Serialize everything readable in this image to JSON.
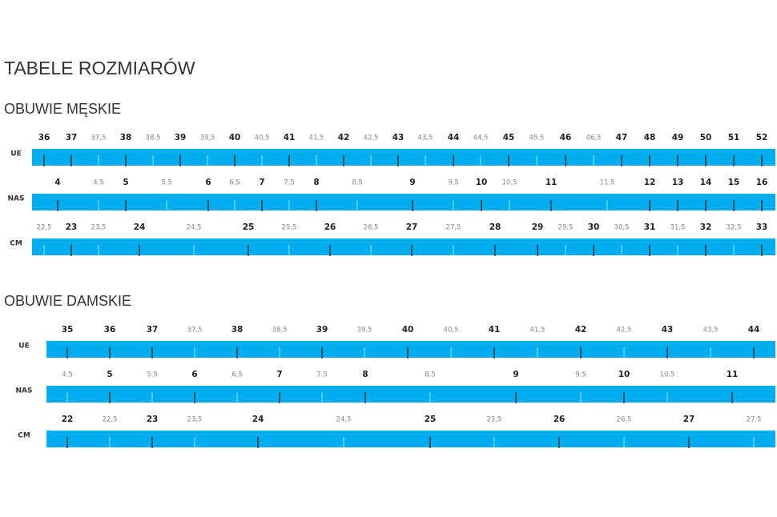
{
  "title": "TABELE ROZMIARÓW",
  "sections": [
    {
      "title": "OBUWIE MĘSKIE",
      "rows": [
        {
          "label": "UE",
          "ticks": [
            "36",
            "37",
            "37,5",
            "38",
            "38,5",
            "39",
            "39,5",
            "40",
            "40,5",
            "41",
            "41,5",
            "42",
            "42,5",
            "43",
            "43,5",
            "44",
            "44,5",
            "45",
            "45.5",
            "46",
            "46,5",
            "47",
            "48",
            "49",
            "50",
            "51",
            "52"
          ]
        },
        {
          "label": "NAS",
          "ticks": [
            "4",
            "4.5",
            "5",
            "5.5",
            "6",
            "6.5",
            "7",
            "7.5",
            "8",
            "8.5",
            "9",
            "9.5",
            "10",
            "10.5",
            "11",
            "11.5",
            "12",
            "13",
            "14",
            "15",
            "16"
          ]
        },
        {
          "label": "CM",
          "ticks": [
            "22,5",
            "23",
            "23,5",
            "24",
            "24,5",
            "25",
            "25,5",
            "26",
            "26,5",
            "27",
            "27,5",
            "28",
            "29",
            "29,5",
            "30",
            "30,5",
            "31",
            "31,5",
            "32",
            "32,5",
            "33"
          ]
        }
      ]
    },
    {
      "title": "OBUWIE DAMSKIE",
      "rows": [
        {
          "label": "UE",
          "ticks": [
            "35",
            "36",
            "37",
            "37,5",
            "38",
            "38,5",
            "39",
            "39,5",
            "40",
            "40,5",
            "41",
            "41,5",
            "42",
            "42,5",
            "43",
            "43,5",
            "44"
          ]
        },
        {
          "label": "NAS",
          "ticks": [
            "4.5",
            "5",
            "5.5",
            "6",
            "6.5",
            "7",
            "7.5",
            "8",
            "8.5",
            "9",
            "9.5",
            "10",
            "10.5",
            "11"
          ]
        },
        {
          "label": "CM",
          "ticks": [
            "22",
            "22,5",
            "23",
            "23,5",
            "24",
            "24,5",
            "25",
            "25,5",
            "26",
            "26,5",
            "27",
            "27,5"
          ]
        }
      ]
    }
  ]
}
